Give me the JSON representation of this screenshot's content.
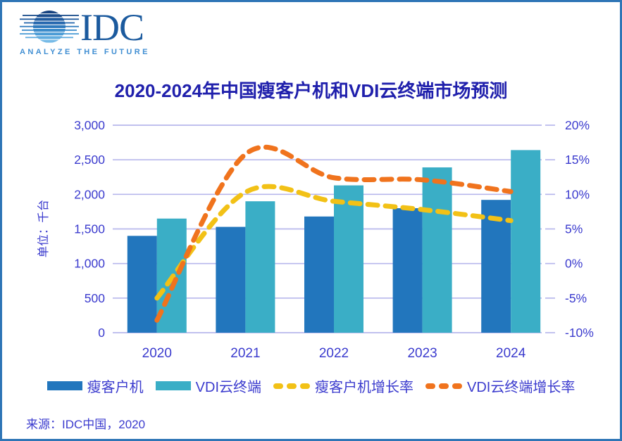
{
  "frame": {
    "border_color": "#2E75B6",
    "background": "#FFFFFF"
  },
  "logo": {
    "brand": "IDC",
    "tagline": "ANALYZE THE FUTURE",
    "brand_color": "#1B5A9E",
    "tagline_color": "#418FD3",
    "globe_stripe_colors": [
      "#16427F",
      "#1A4C8C",
      "#1F5A9E",
      "#2669AE",
      "#2F7ABD",
      "#3C8CCB",
      "#4C9CD6",
      "#60ACDF",
      "#77BBE7"
    ]
  },
  "chart_data": {
    "type": "bar+line-combo",
    "title": "2020-2024年中国瘦客户机和VDI云终端市场预测",
    "title_color": "#2020AC",
    "categories": [
      "2020",
      "2021",
      "2022",
      "2023",
      "2024"
    ],
    "series": [
      {
        "name": "瘦客户机",
        "type": "bar",
        "axis": "left",
        "color": "#2276BD",
        "values": [
          1400,
          1530,
          1680,
          1800,
          1920
        ]
      },
      {
        "name": "VDI云终端",
        "type": "bar",
        "axis": "left",
        "color": "#3AAEC6",
        "values": [
          1650,
          1900,
          2130,
          2390,
          2640
        ]
      },
      {
        "name": "瘦客户机增长率",
        "type": "line",
        "axis": "right",
        "style": "dashed",
        "color": "#F2C116",
        "values_pct": [
          -5.0,
          10.3,
          9.0,
          7.8,
          6.2
        ]
      },
      {
        "name": "VDI云终端增长率",
        "type": "line",
        "axis": "right",
        "style": "dashed",
        "color": "#F0731D",
        "values_pct": [
          -8.2,
          15.8,
          12.4,
          12.1,
          10.4
        ]
      }
    ],
    "left_axis": {
      "label": "单位：千台",
      "min": 0,
      "max": 3000,
      "ticks": [
        "0",
        "500",
        "1,000",
        "1,500",
        "2,000",
        "2,500",
        "3,000"
      ]
    },
    "right_axis": {
      "min": -10,
      "max": 20,
      "ticks": [
        "-10%",
        "-5%",
        "0%",
        "5%",
        "10%",
        "15%",
        "20%"
      ]
    },
    "grid": true,
    "gridline_color": "#B7B7EC",
    "axis_text_color": "#3B3BCE",
    "legend_position": "bottom"
  },
  "source": "来源：IDC中国，2020"
}
